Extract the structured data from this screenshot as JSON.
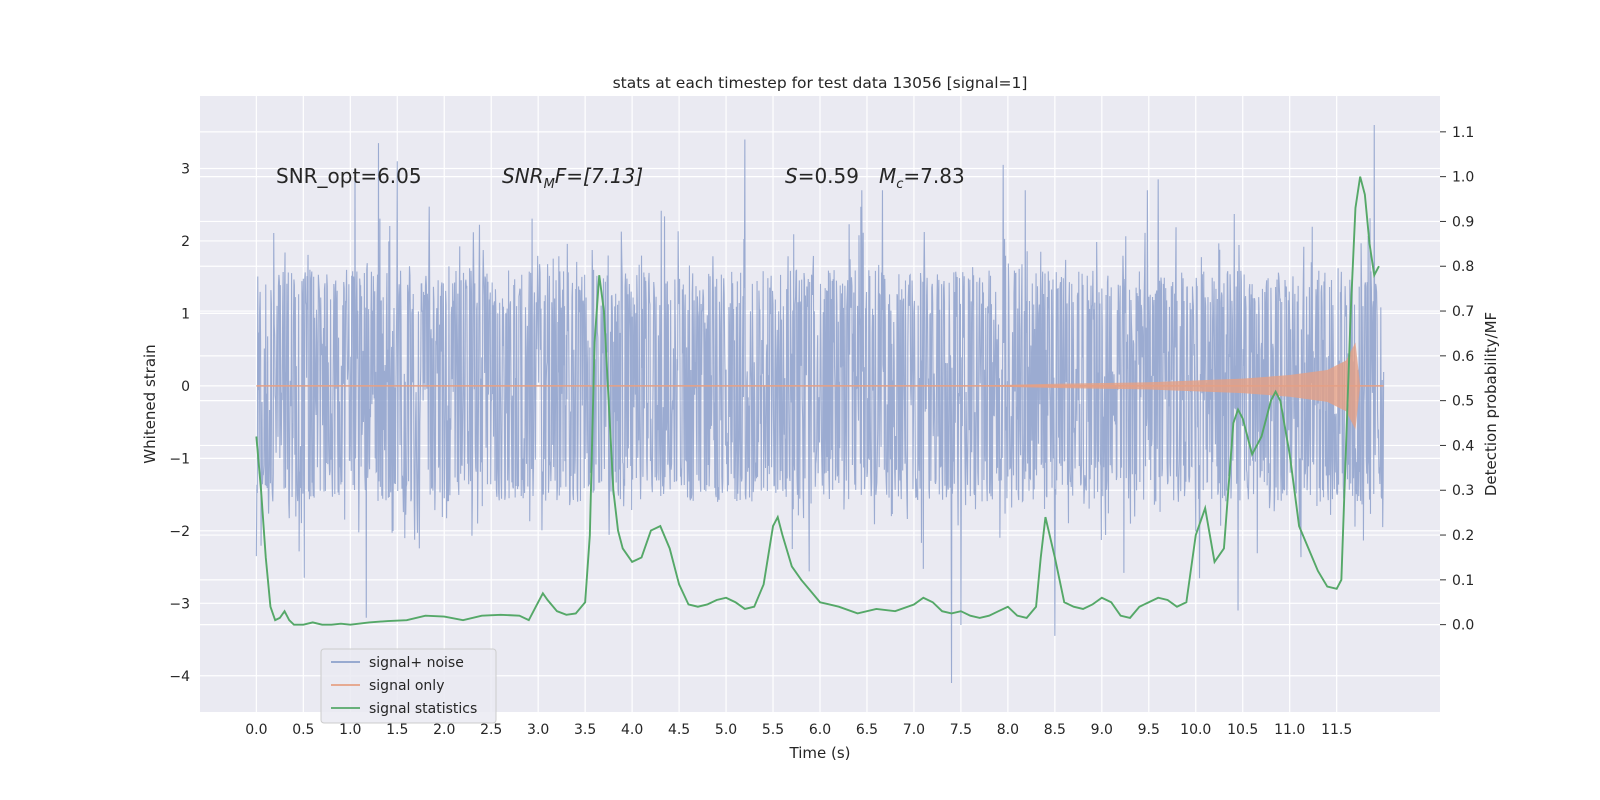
{
  "chart_data": {
    "type": "line",
    "title": "stats at each timestep for test data 13056 [signal=1]",
    "xlabel": "Time (s)",
    "ylabel_left": "Whitened strain",
    "ylabel_right": "Detection probability/MF",
    "xlim": [
      -0.6,
      12.6
    ],
    "ylim_left": [
      -4.5,
      4.0
    ],
    "ylim_right": [
      -0.195,
      1.18
    ],
    "x_ticks": [
      "0.0",
      "0.5",
      "1.0",
      "1.5",
      "2.0",
      "2.5",
      "3.0",
      "3.5",
      "4.0",
      "4.5",
      "5.0",
      "5.5",
      "6.0",
      "6.5",
      "7.0",
      "7.5",
      "8.0",
      "8.5",
      "9.0",
      "9.5",
      "10.0",
      "10.5",
      "11.0",
      "11.5"
    ],
    "y_ticks_left": [
      "−4",
      "−3",
      "−2",
      "−1",
      "0",
      "1",
      "2",
      "3"
    ],
    "y_ticks_right": [
      "0.0",
      "0.1",
      "0.2",
      "0.3",
      "0.4",
      "0.5",
      "0.6",
      "0.7",
      "0.8",
      "0.9",
      "1.0",
      "1.1"
    ],
    "grid": true,
    "legend_placement": "lower-left",
    "annotations": {
      "snr_opt": "SNR_opt=6.05",
      "snr_mf_symbol": "SNR",
      "snr_mf_sub": "M",
      "snr_mf_rest": "F=[7.13]",
      "s_symbol": "S",
      "s_value": "=0.59",
      "mc_symbol": "M",
      "mc_sub": "c",
      "mc_value": "=7.83"
    },
    "series": [
      {
        "name": "signal+ noise",
        "axis": "left",
        "color": "#8da0cb",
        "description_of_values": "whitened strain noise, roughly within ±1.6 with spikes to about +3.6 and −4.1",
        "x_range": [
          0.0,
          12.0
        ],
        "spikes": [
          {
            "x": 1.3,
            "y": 3.35
          },
          {
            "x": 1.05,
            "y": 3.0
          },
          {
            "x": 1.5,
            "y": 3.1
          },
          {
            "x": 5.2,
            "y": 3.4
          },
          {
            "x": 7.95,
            "y": 3.05
          },
          {
            "x": 9.6,
            "y": 2.85
          },
          {
            "x": 11.9,
            "y": 3.6
          },
          {
            "x": 1.17,
            "y": -3.2
          },
          {
            "x": 7.4,
            "y": -4.1
          },
          {
            "x": 8.5,
            "y": -3.45
          },
          {
            "x": 10.45,
            "y": -3.1
          },
          {
            "x": 7.5,
            "y": -3.3
          }
        ]
      },
      {
        "name": "signal only",
        "axis": "left",
        "color": "#e5a085",
        "description_of_values": "chirp signal, near zero until about 7.5 s then growing to about ±0.6 at 11.7 s",
        "envelope": [
          [
            0.0,
            0.0
          ],
          [
            7.5,
            0.0
          ],
          [
            8.5,
            0.03
          ],
          [
            9.5,
            0.05
          ],
          [
            10.5,
            0.1
          ],
          [
            11.0,
            0.15
          ],
          [
            11.4,
            0.22
          ],
          [
            11.6,
            0.35
          ],
          [
            11.7,
            0.6
          ],
          [
            11.75,
            0.0
          ],
          [
            12.0,
            0.0
          ]
        ]
      },
      {
        "name": "signal statistics",
        "axis": "right",
        "color": "#55a868",
        "x": [
          0.0,
          0.05,
          0.1,
          0.15,
          0.2,
          0.25,
          0.3,
          0.35,
          0.4,
          0.5,
          0.6,
          0.7,
          0.8,
          0.9,
          1.0,
          1.2,
          1.4,
          1.6,
          1.8,
          2.0,
          2.2,
          2.4,
          2.6,
          2.8,
          2.9,
          3.0,
          3.05,
          3.1,
          3.2,
          3.3,
          3.4,
          3.5,
          3.55,
          3.6,
          3.65,
          3.7,
          3.75,
          3.8,
          3.85,
          3.9,
          4.0,
          4.1,
          4.2,
          4.3,
          4.4,
          4.5,
          4.6,
          4.7,
          4.8,
          4.9,
          5.0,
          5.1,
          5.2,
          5.3,
          5.4,
          5.5,
          5.55,
          5.6,
          5.7,
          5.8,
          5.9,
          6.0,
          6.1,
          6.2,
          6.4,
          6.6,
          6.8,
          7.0,
          7.1,
          7.2,
          7.3,
          7.4,
          7.5,
          7.6,
          7.7,
          7.8,
          7.9,
          8.0,
          8.1,
          8.2,
          8.3,
          8.35,
          8.4,
          8.5,
          8.6,
          8.7,
          8.8,
          8.9,
          9.0,
          9.1,
          9.2,
          9.3,
          9.4,
          9.5,
          9.6,
          9.7,
          9.8,
          9.9,
          10.0,
          10.1,
          10.2,
          10.3,
          10.4,
          10.45,
          10.5,
          10.6,
          10.7,
          10.8,
          10.85,
          10.9,
          11.0,
          11.1,
          11.2,
          11.3,
          11.4,
          11.5,
          11.55,
          11.6,
          11.65,
          11.7,
          11.75,
          11.8,
          11.85,
          11.9,
          11.95
        ],
        "values": [
          0.42,
          0.3,
          0.15,
          0.04,
          0.01,
          0.015,
          0.03,
          0.01,
          0.0,
          0.0,
          0.005,
          0.0,
          0.0,
          0.002,
          0.0,
          0.005,
          0.008,
          0.01,
          0.02,
          0.018,
          0.01,
          0.02,
          0.022,
          0.02,
          0.01,
          0.05,
          0.07,
          0.055,
          0.03,
          0.022,
          0.025,
          0.05,
          0.2,
          0.63,
          0.78,
          0.7,
          0.5,
          0.3,
          0.21,
          0.17,
          0.14,
          0.15,
          0.21,
          0.22,
          0.17,
          0.09,
          0.045,
          0.04,
          0.045,
          0.055,
          0.06,
          0.05,
          0.035,
          0.04,
          0.09,
          0.22,
          0.24,
          0.2,
          0.13,
          0.1,
          0.075,
          0.05,
          0.045,
          0.04,
          0.025,
          0.035,
          0.03,
          0.045,
          0.06,
          0.05,
          0.03,
          0.025,
          0.03,
          0.02,
          0.015,
          0.02,
          0.03,
          0.04,
          0.02,
          0.015,
          0.04,
          0.15,
          0.24,
          0.15,
          0.05,
          0.04,
          0.035,
          0.045,
          0.06,
          0.05,
          0.02,
          0.015,
          0.04,
          0.05,
          0.06,
          0.055,
          0.04,
          0.05,
          0.2,
          0.26,
          0.14,
          0.17,
          0.45,
          0.48,
          0.46,
          0.38,
          0.42,
          0.5,
          0.52,
          0.5,
          0.38,
          0.22,
          0.17,
          0.12,
          0.085,
          0.08,
          0.1,
          0.4,
          0.7,
          0.93,
          1.0,
          0.96,
          0.85,
          0.78,
          0.8
        ]
      }
    ]
  }
}
